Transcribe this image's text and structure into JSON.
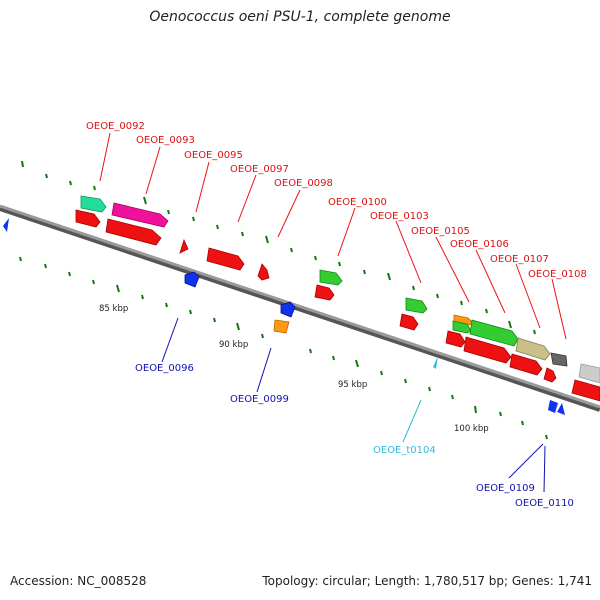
{
  "title": "Oenococcus oeni PSU-1, complete genome",
  "accession": "Accession: NC_008528",
  "topology": "Topology: circular; Length: 1,780,517 bp; Genes: 1,741",
  "colors": {
    "backbone": "#8a8a8a",
    "red": "#ee1111",
    "magenta": "#ee1199",
    "teal": "#22dd99",
    "green": "#33cc33",
    "orange": "#ff9911",
    "khaki": "#c8c088",
    "dark_gray": "#666666",
    "light_gray": "#cccccc",
    "blue": "#1133ee",
    "cyan": "#33bbdd",
    "tick": "#117711"
  },
  "kbp_labels": [
    "85 kbp",
    "90 kbp",
    "95 kbp",
    "100 kbp"
  ],
  "forward_labels": [
    "OEOE_0092",
    "OEOE_0093",
    "OEOE_0095",
    "OEOE_0097",
    "OEOE_0098",
    "OEOE_0100",
    "OEOE_0103",
    "OEOE_0105",
    "OEOE_0106",
    "OEOE_0107",
    "OEOE_0108"
  ],
  "reverse_labels": [
    "OEOE_0096",
    "OEOE_0099",
    "OEOE_t0104",
    "OEOE_0109",
    "OEOE_0110"
  ]
}
